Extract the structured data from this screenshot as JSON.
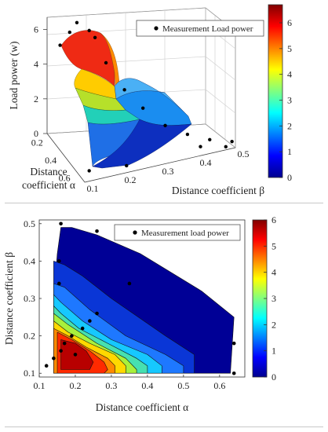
{
  "chart_data": [
    {
      "type": "surface3d",
      "legend": "Measurement Load power",
      "zlabel": "Load power (w)",
      "alpha_label_line1": "Distance",
      "alpha_label_line2": "coefficient α",
      "beta_label": "Distance coefficient β",
      "alpha_ticks": [
        "0.2",
        "0.4",
        "0.6"
      ],
      "beta_ticks": [
        "0.1",
        "0.2",
        "0.3",
        "0.4",
        "0.5"
      ],
      "z_ticks": [
        "0",
        "2",
        "4",
        "6"
      ],
      "colorbar_ticks": [
        "0",
        "1",
        "2",
        "3",
        "4",
        "5",
        "6"
      ],
      "zlim": [
        0,
        6.7
      ],
      "alim": [
        0.1,
        0.65
      ],
      "blim": [
        0.1,
        0.5
      ],
      "colormap": "jet",
      "grid": true,
      "legend_position": "top-right",
      "points": [
        {
          "alpha": 0.18,
          "beta": 0.12,
          "z": 5.4
        },
        {
          "alpha": 0.21,
          "beta": 0.14,
          "z": 6.2
        },
        {
          "alpha": 0.15,
          "beta": 0.17,
          "z": 6.3
        },
        {
          "alpha": 0.22,
          "beta": 0.19,
          "z": 6.1
        },
        {
          "alpha": 0.25,
          "beta": 0.2,
          "z": 5.8
        },
        {
          "alpha": 0.3,
          "beta": 0.22,
          "z": 4.5
        },
        {
          "alpha": 0.35,
          "beta": 0.26,
          "z": 3.0
        },
        {
          "alpha": 0.4,
          "beta": 0.3,
          "z": 2.0
        },
        {
          "alpha": 0.45,
          "beta": 0.35,
          "z": 1.0
        },
        {
          "alpha": 0.5,
          "beta": 0.4,
          "z": 0.5
        },
        {
          "alpha": 0.55,
          "beta": 0.45,
          "z": 0.2
        },
        {
          "alpha": 0.6,
          "beta": 0.5,
          "z": 0.1
        },
        {
          "alpha": 0.62,
          "beta": 0.48,
          "z": 0.0
        },
        {
          "alpha": 0.58,
          "beta": 0.42,
          "z": 0.1
        },
        {
          "alpha": 0.6,
          "beta": 0.22,
          "z": 0.1
        },
        {
          "alpha": 0.55,
          "beta": 0.13,
          "z": 0.0
        }
      ]
    },
    {
      "type": "contour",
      "legend": "Measurement load power",
      "xlabel": "Distance coefficient α",
      "ylabel": "Distance coefficient β",
      "xlim": [
        0.1,
        0.67
      ],
      "ylim": [
        0.09,
        0.51
      ],
      "x_ticks": [
        "0.1",
        "0.2",
        "0.3",
        "0.4",
        "0.5",
        "0.6"
      ],
      "y_ticks": [
        "0.1",
        "0.2",
        "0.3",
        "0.4",
        "0.5"
      ],
      "colorbar_ticks": [
        "0",
        "1",
        "2",
        "3",
        "4",
        "5",
        "6"
      ],
      "zlim": [
        0,
        6
      ],
      "colormap": "jet",
      "grid": false,
      "legend_position": "top-right",
      "points": [
        {
          "x": 0.12,
          "y": 0.12
        },
        {
          "x": 0.14,
          "y": 0.14
        },
        {
          "x": 0.16,
          "y": 0.16
        },
        {
          "x": 0.19,
          "y": 0.2
        },
        {
          "x": 0.22,
          "y": 0.22
        },
        {
          "x": 0.26,
          "y": 0.26
        },
        {
          "x": 0.24,
          "y": 0.24
        },
        {
          "x": 0.155,
          "y": 0.34
        },
        {
          "x": 0.155,
          "y": 0.4
        },
        {
          "x": 0.16,
          "y": 0.5
        },
        {
          "x": 0.26,
          "y": 0.48
        },
        {
          "x": 0.35,
          "y": 0.34
        },
        {
          "x": 0.64,
          "y": 0.18
        },
        {
          "x": 0.64,
          "y": 0.1
        },
        {
          "x": 0.2,
          "y": 0.15
        },
        {
          "x": 0.17,
          "y": 0.18
        }
      ]
    }
  ]
}
